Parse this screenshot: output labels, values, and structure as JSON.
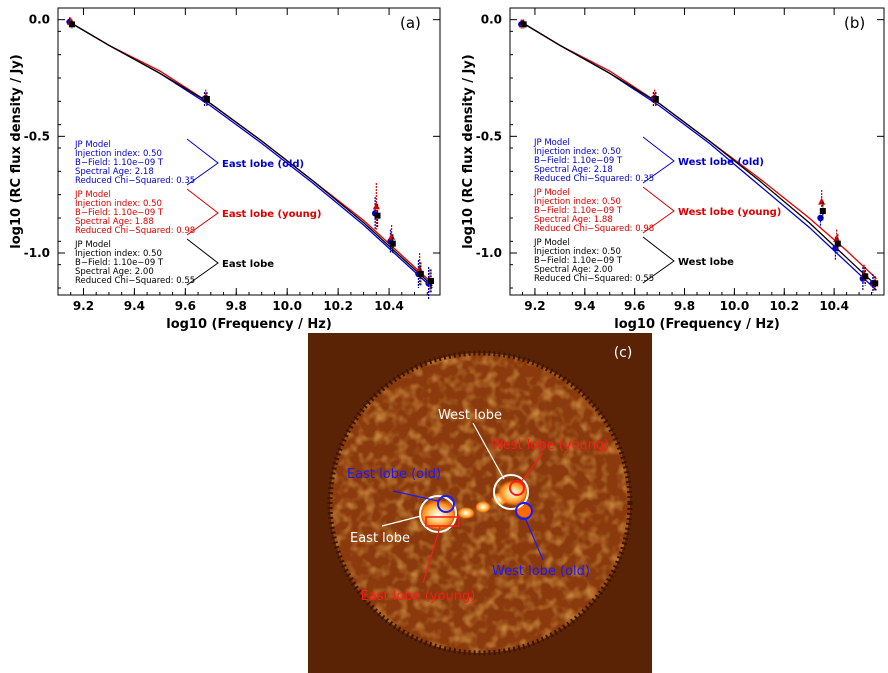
{
  "chart_data": [
    {
      "type": "scatter",
      "panel_label": "(a)",
      "xlabel": "log10 (Frequency / Hz)",
      "ylabel": "log10 (RC flux density / Jy)",
      "xlim": [
        9.1,
        10.6
      ],
      "ylim": [
        -1.18,
        0.05
      ],
      "xticks": [
        9.2,
        9.4,
        9.6,
        9.8,
        10.0,
        10.2,
        10.4
      ],
      "xtick_labels": [
        "9.2",
        "9.4",
        "9.6",
        "9.8",
        "10.0",
        "10.2",
        "10.4"
      ],
      "yticks": [
        0.0,
        -0.5,
        -1.0
      ],
      "ytick_labels": [
        "0.0",
        "-0.5",
        "-1.0"
      ],
      "model_curve_x": [
        9.16,
        9.3,
        9.5,
        9.7,
        9.9,
        10.1,
        10.3,
        10.45,
        10.57
      ],
      "series": [
        {
          "label_name": "East lobe (old)",
          "color": "#0000cc",
          "marker": "circle",
          "x": [
            9.15,
            9.68,
            10.35,
            10.41,
            10.52,
            10.56
          ],
          "y": [
            -0.01,
            -0.34,
            -0.83,
            -0.95,
            -1.09,
            -1.13
          ],
          "err": [
            0.02,
            0.03,
            0.07,
            0.05,
            0.06,
            0.07
          ],
          "curve": [
            -0.02,
            -0.11,
            -0.23,
            -0.37,
            -0.53,
            -0.7,
            -0.88,
            -1.03,
            -1.15
          ],
          "model": {
            "name": "JP Model",
            "lines": [
              "Injection index: 0.50",
              "B−Field: 1.10e−09 T",
              "Spectral Age: 2.18",
              "Reduced Chi−Squared: 0.35"
            ]
          }
        },
        {
          "label_name": "East lobe (young)",
          "color": "#dd0000",
          "marker": "triangle",
          "x": [
            9.15,
            9.68,
            10.35,
            10.41,
            10.52,
            10.56
          ],
          "y": [
            -0.01,
            -0.33,
            -0.8,
            -0.93,
            -1.07,
            -1.12
          ],
          "err": [
            0.02,
            0.03,
            0.1,
            0.05,
            0.07,
            0.05
          ],
          "curve": [
            -0.02,
            -0.11,
            -0.22,
            -0.36,
            -0.52,
            -0.69,
            -0.86,
            -1.01,
            -1.13
          ],
          "model": {
            "name": "JP Model",
            "lines": [
              "Injection index: 0.50",
              "B−Field: 1.10e−09 T",
              "Spectral Age: 1.88",
              "Reduced Chi−Squared: 0.98"
            ]
          }
        },
        {
          "label_name": "East lobe",
          "color": "#000000",
          "marker": "square",
          "x": [
            9.15,
            9.68,
            10.35,
            10.41,
            10.52,
            10.56
          ],
          "y": [
            -0.02,
            -0.34,
            -0.84,
            -0.96,
            -1.09,
            -1.12
          ],
          "err": [
            0.02,
            0.03,
            0.05,
            0.04,
            0.05,
            0.05
          ],
          "curve": [
            -0.02,
            -0.11,
            -0.23,
            -0.36,
            -0.52,
            -0.69,
            -0.87,
            -1.02,
            -1.14
          ],
          "model": {
            "name": "JP Model",
            "lines": [
              "Injection index: 0.50",
              "B−Field: 1.10e−09 T",
              "Spectral Age: 2.00",
              "Reduced Chi−Squared: 0.55"
            ]
          }
        }
      ]
    },
    {
      "type": "scatter",
      "panel_label": "(b)",
      "xlabel": "log10 (Frequency / Hz)",
      "ylabel": "log10 (RC flux density / Jy)",
      "xlim": [
        9.1,
        10.6
      ],
      "ylim": [
        -1.18,
        0.05
      ],
      "xticks": [
        9.2,
        9.4,
        9.6,
        9.8,
        10.0,
        10.2,
        10.4
      ],
      "xtick_labels": [
        "9.2",
        "9.4",
        "9.6",
        "9.8",
        "10.0",
        "10.2",
        "10.4"
      ],
      "yticks": [
        0.0,
        -0.5,
        -1.0
      ],
      "ytick_labels": [
        "0.0",
        "-0.5",
        "-1.0"
      ],
      "model_curve_x": [
        9.16,
        9.3,
        9.5,
        9.7,
        9.9,
        10.1,
        10.3,
        10.45,
        10.57
      ],
      "series": [
        {
          "label_name": "West lobe (old)",
          "color": "#0000cc",
          "marker": "circle",
          "x": [
            9.15,
            9.68,
            10.35,
            10.41,
            10.52,
            10.56
          ],
          "y": [
            -0.02,
            -0.34,
            -0.85,
            -0.98,
            -1.11,
            -1.13
          ],
          "err": [
            0.02,
            0.03,
            0.04,
            0.05,
            0.05,
            0.04
          ],
          "curve": [
            -0.02,
            -0.11,
            -0.23,
            -0.37,
            -0.53,
            -0.71,
            -0.89,
            -1.04,
            -1.16
          ],
          "model": {
            "name": "JP Model",
            "lines": [
              "Injection index: 0.50",
              "B−Field: 1.10e−09 T",
              "Spectral Age: 2.18",
              "Reduced Chi−Squared: 0.35"
            ]
          }
        },
        {
          "label_name": "West lobe (young)",
          "color": "#dd0000",
          "marker": "triangle",
          "x": [
            9.15,
            9.68,
            10.35,
            10.41,
            10.52,
            10.56
          ],
          "y": [
            -0.02,
            -0.33,
            -0.78,
            -0.94,
            -1.09,
            -1.13
          ],
          "err": [
            0.02,
            0.03,
            0.05,
            0.04,
            0.04,
            0.03
          ],
          "curve": [
            -0.02,
            -0.11,
            -0.22,
            -0.36,
            -0.52,
            -0.68,
            -0.85,
            -0.99,
            -1.11
          ],
          "model": {
            "name": "JP Model",
            "lines": [
              "Injection index: 0.50",
              "B−Field: 1.10e−09 T",
              "Spectral Age: 1.88",
              "Reduced Chi−Squared: 0.98"
            ]
          }
        },
        {
          "label_name": "West lobe",
          "color": "#000000",
          "marker": "square",
          "x": [
            9.15,
            9.68,
            10.35,
            10.41,
            10.52,
            10.56
          ],
          "y": [
            -0.02,
            -0.34,
            -0.82,
            -0.96,
            -1.1,
            -1.13
          ],
          "err": [
            0.02,
            0.03,
            0.04,
            0.04,
            0.04,
            0.03
          ],
          "curve": [
            -0.02,
            -0.11,
            -0.23,
            -0.36,
            -0.52,
            -0.69,
            -0.87,
            -1.02,
            -1.14
          ],
          "model": {
            "name": "JP Model",
            "lines": [
              "Injection index: 0.50",
              "B−Field: 1.10e−09 T",
              "Spectral Age: 2.00",
              "Reduced Chi−Squared: 0.55"
            ]
          }
        }
      ]
    }
  ],
  "image_panel": {
    "panel_label": "(c)",
    "labels": {
      "west_lobe": "West lobe",
      "west_lobe_young": "West lobe (young)",
      "east_lobe_old": "East lobe (old)",
      "east_lobe": "East lobe",
      "west_lobe_old": "West lobe (old)",
      "east_lobe_young": "East lobe (young)"
    },
    "colors": {
      "background": "#5a2306",
      "white": "#ffffff",
      "red": "#ff1a1a",
      "blue": "#1a1aff"
    }
  }
}
